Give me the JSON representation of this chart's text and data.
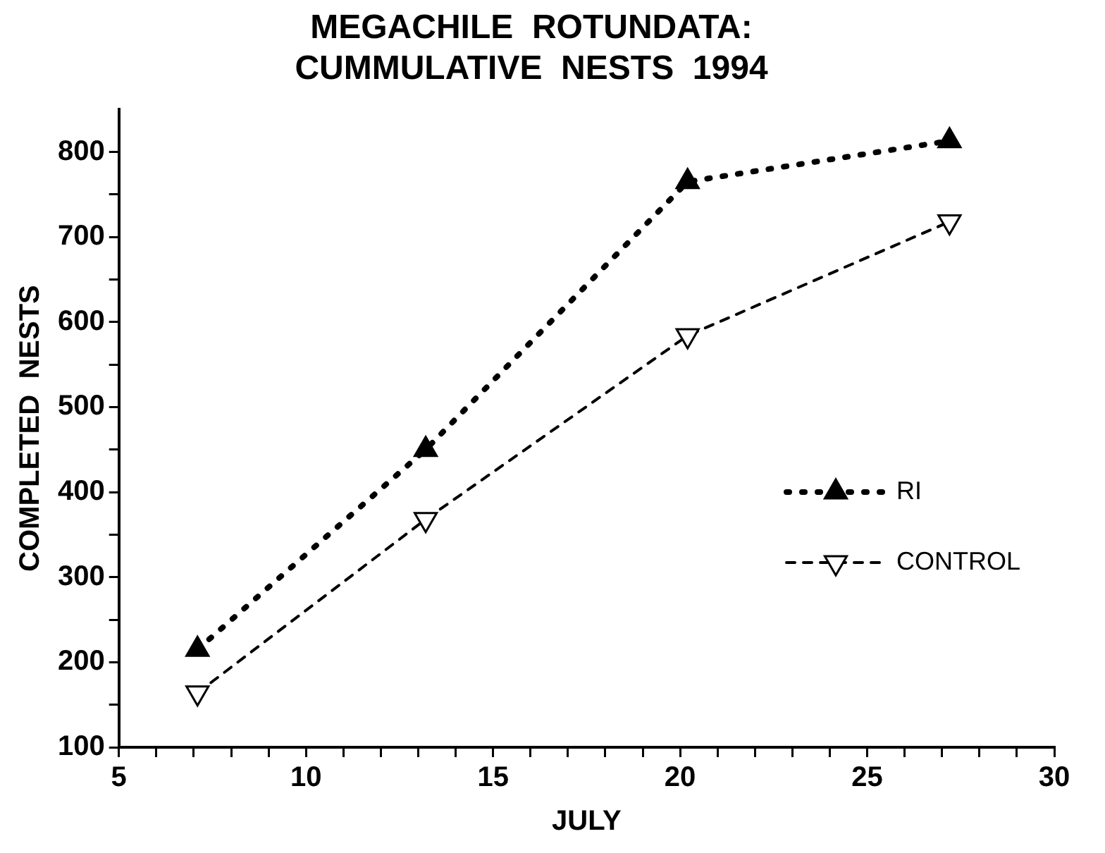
{
  "chart_data": {
    "type": "line",
    "title": "MEGACHILE  ROTUNDATA:\nCUMMULATIVE  NESTS  1994",
    "xlabel": "JULY",
    "ylabel": "COMPLETED  NESTS",
    "xlim": [
      5,
      30
    ],
    "xticks": [
      5,
      {
        "value": 6,
        "label": null
      },
      {
        "value": 7,
        "label": null
      },
      {
        "value": 8,
        "label": null
      },
      {
        "value": 9,
        "label": null
      },
      10,
      {
        "value": 11,
        "label": null
      },
      {
        "value": 12,
        "label": null
      },
      {
        "value": 13,
        "label": null
      },
      {
        "value": 14,
        "label": null
      },
      15,
      {
        "value": 16,
        "label": null
      },
      {
        "value": 17,
        "label": null
      },
      {
        "value": 18,
        "label": null
      },
      {
        "value": 19,
        "label": null
      },
      20,
      {
        "value": 21,
        "label": null
      },
      {
        "value": 22,
        "label": null
      },
      {
        "value": 23,
        "label": null
      },
      {
        "value": 24,
        "label": null
      },
      25,
      {
        "value": 26,
        "label": null
      },
      {
        "value": 27,
        "label": null
      },
      {
        "value": 28,
        "label": null
      },
      {
        "value": 29,
        "label": null
      },
      30
    ],
    "ylim": [
      100,
      850
    ],
    "yticks": [
      100,
      {
        "value": 150,
        "label": null
      },
      200,
      {
        "value": 250,
        "label": null
      },
      300,
      {
        "value": 350,
        "label": null
      },
      400,
      {
        "value": 450,
        "label": null
      },
      500,
      {
        "value": 550,
        "label": null
      },
      600,
      {
        "value": 650,
        "label": null
      },
      700,
      {
        "value": 750,
        "label": null
      },
      800
    ],
    "x": [
      7.1,
      13.2,
      20.2,
      27.2
    ],
    "marker": "triangle",
    "legend": "right",
    "grid": false,
    "series": [
      {
        "name": "RI",
        "color": "#000000",
        "line_style": "dotted",
        "values": [
          215,
          450,
          765,
          813
        ]
      },
      {
        "name": "CONTROL",
        "color": "#000000",
        "line_style": "dashed",
        "values": [
          164,
          368,
          584,
          718
        ]
      }
    ]
  }
}
